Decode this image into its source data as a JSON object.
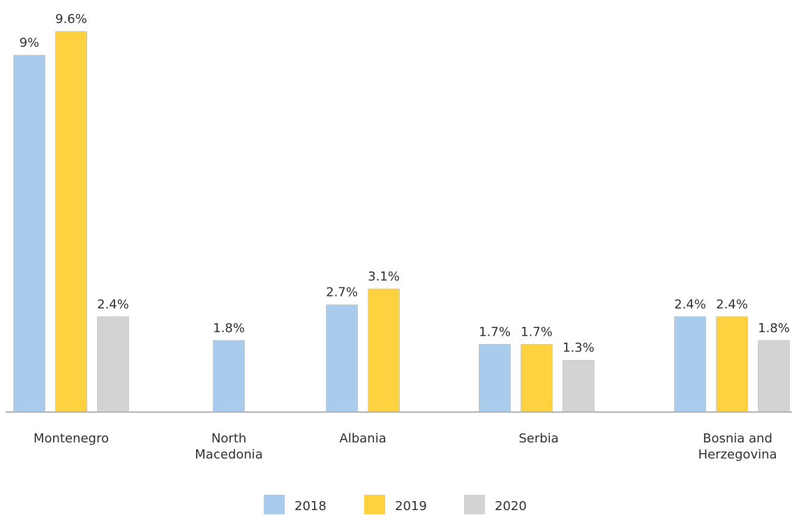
{
  "chart_data": {
    "type": "bar",
    "categories": [
      "Montenegro",
      "North Macedonia",
      "Albania",
      "Serbia",
      "Bosnia and Herzegovina"
    ],
    "series": [
      {
        "name": "2018",
        "color": "#a9cbec",
        "values": [
          9,
          1.8,
          2.7,
          1.7,
          2.4
        ],
        "value_labels": [
          "9%",
          "1.8%",
          "2.7%",
          "1.7%",
          "2.4%"
        ]
      },
      {
        "name": "2019",
        "color": "#fdd13f",
        "values": [
          9.6,
          null,
          3.1,
          1.7,
          2.4
        ],
        "value_labels": [
          "9.6%",
          null,
          "3.1%",
          "1.7%",
          "2.4%"
        ]
      },
      {
        "name": "2020",
        "color": "#d3d3d3",
        "values": [
          2.4,
          null,
          null,
          1.3,
          1.8
        ],
        "value_labels": [
          "2.4%",
          null,
          null,
          "1.3%",
          "1.8%"
        ]
      }
    ],
    "legend": "bottom"
  }
}
